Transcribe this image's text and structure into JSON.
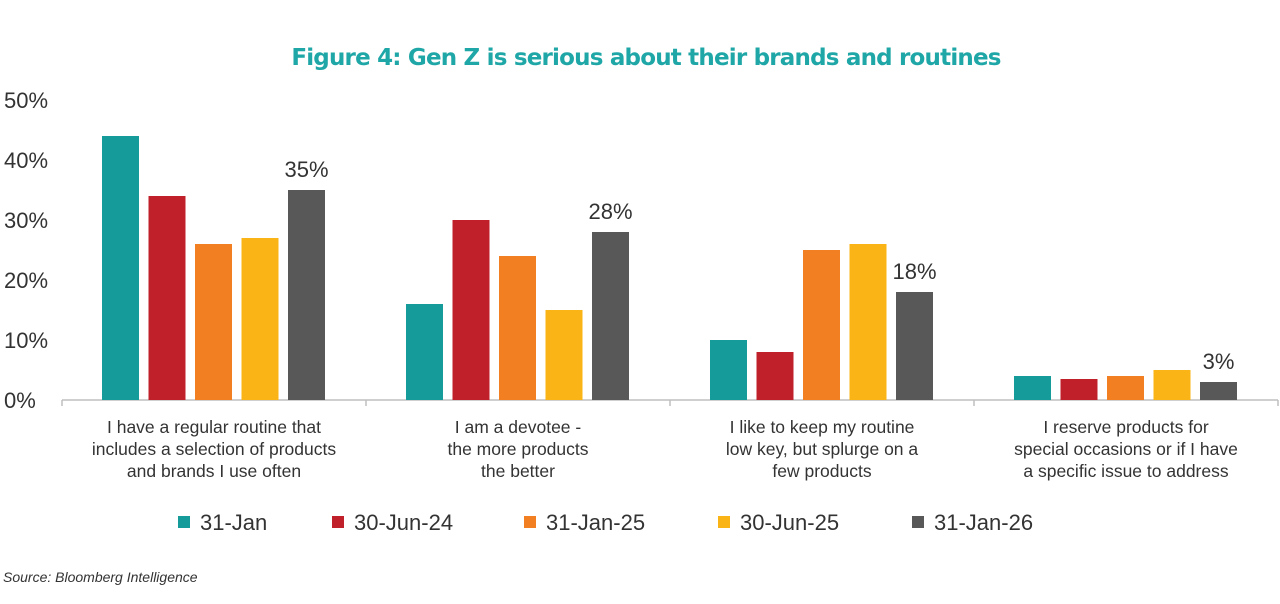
{
  "colors": {
    "title": "#1fa6a6",
    "axis": "#bfbfbf",
    "text": "#333333"
  },
  "chart_data": {
    "type": "bar",
    "title": "Figure 4: Gen Z is serious about their brands and routines",
    "source": "Source: Bloomberg Intelligence",
    "xlabel": "",
    "ylabel": "",
    "ylim": [
      0,
      50
    ],
    "ytick_values": [
      0,
      10,
      20,
      30,
      40,
      50
    ],
    "ytick_labels": [
      "0%",
      "10%",
      "20%",
      "30%",
      "40%",
      "50%"
    ],
    "grid": false,
    "legend_position": "bottom",
    "categories": [
      [
        "I have a regular routine that",
        "includes a selection of products",
        "and brands I use often"
      ],
      [
        "I am a devotee -",
        "the more products",
        "the better"
      ],
      [
        "I like to keep my routine",
        "low key, but splurge on a",
        "few products"
      ],
      [
        "I reserve products for",
        "special occasions or if I have",
        "a specific issue to address"
      ]
    ],
    "series": [
      {
        "name": "31-Jan",
        "color": "#169b9b",
        "values": [
          44,
          16,
          10,
          4
        ]
      },
      {
        "name": "30-Jun-24",
        "color": "#c0202a",
        "values": [
          34,
          30,
          8,
          3.5
        ]
      },
      {
        "name": "31-Jan-25",
        "color": "#f37f23",
        "values": [
          26,
          24,
          25,
          4
        ]
      },
      {
        "name": "30-Jun-25",
        "color": "#fbb416",
        "values": [
          27,
          15,
          26,
          5
        ]
      },
      {
        "name": "31-Jan-26",
        "color": "#585858",
        "values": [
          35,
          28,
          18,
          3
        ]
      }
    ],
    "data_labels": {
      "series": "31-Jan-26",
      "texts": [
        "35%",
        "28%",
        "18%",
        "3%"
      ]
    }
  }
}
